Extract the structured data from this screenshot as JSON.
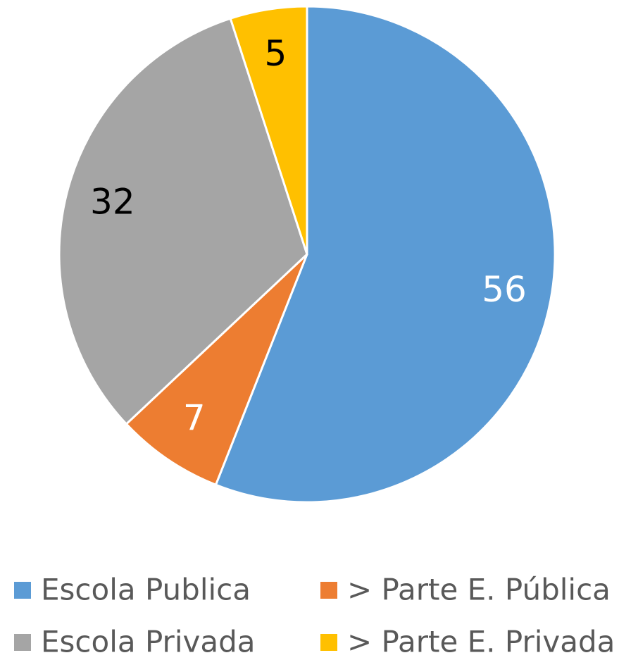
{
  "chart_data": {
    "type": "pie",
    "categories": [
      "Escola Publica",
      "> Parte E. Pública",
      "Escola Privada",
      "> Parte E. Privada"
    ],
    "values": [
      56,
      7,
      32,
      5
    ],
    "colors": [
      "#5b9bd5",
      "#ed7d31",
      "#a5a5a5",
      "#ffc000"
    ],
    "legend": "bottom"
  }
}
